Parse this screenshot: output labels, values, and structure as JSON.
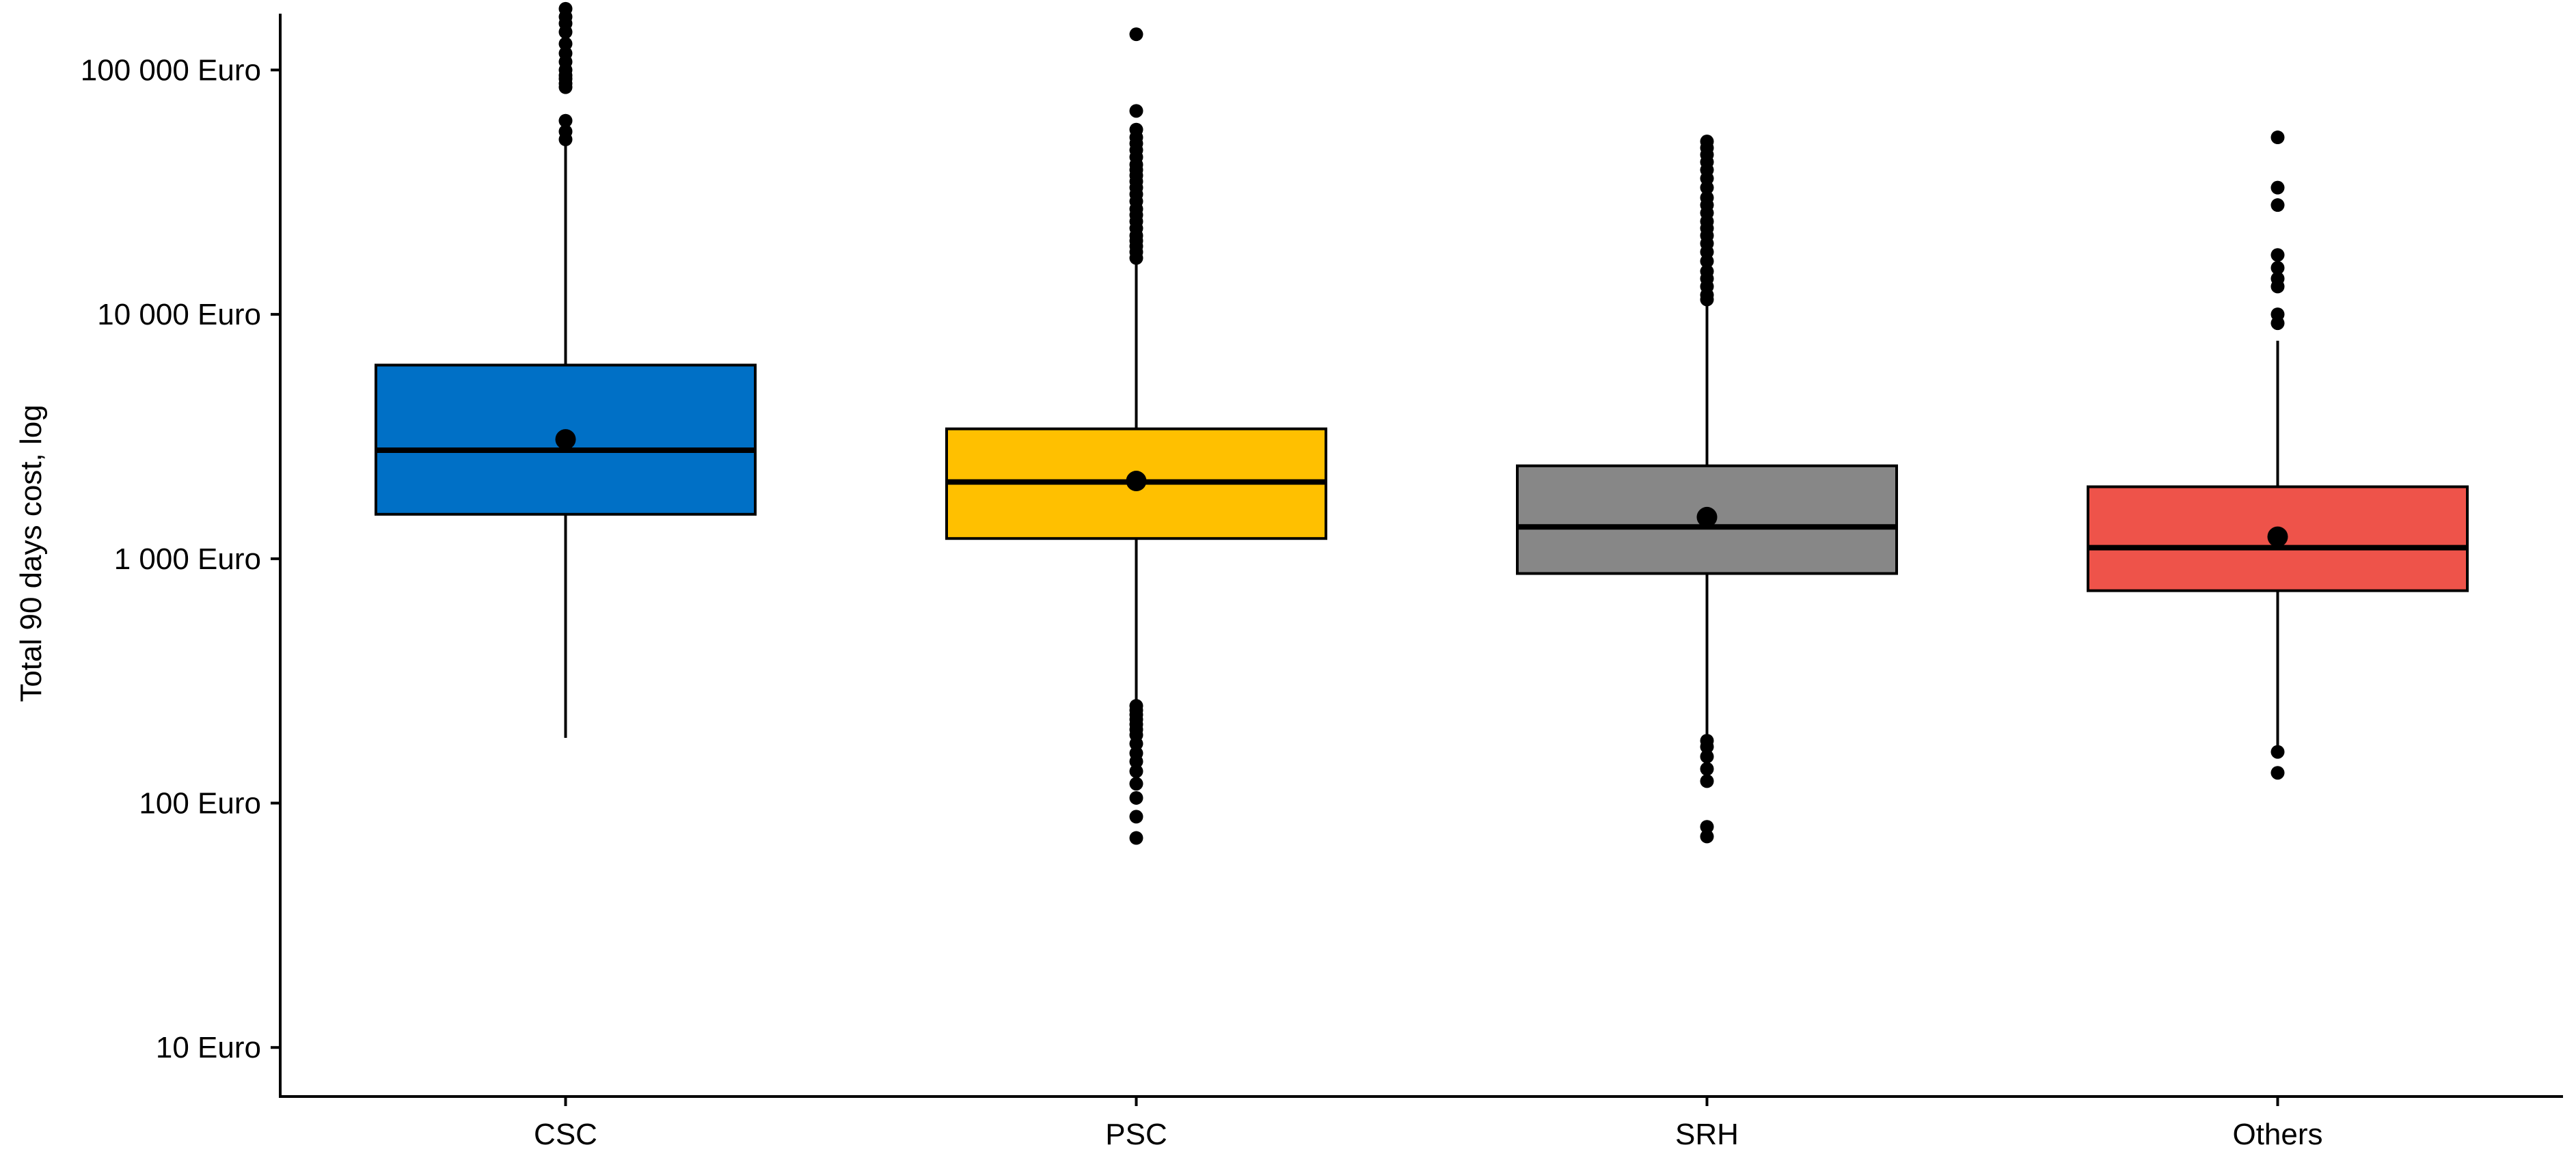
{
  "chart_data": {
    "type": "box",
    "ylabel": "Total 90 days cost, log",
    "xlabel": "",
    "y_scale": "log10",
    "ylim": [
      6.3,
      170000
    ],
    "y_ticks": [
      {
        "value": 10,
        "label": "10 Euro"
      },
      {
        "value": 100,
        "label": "100 Euro"
      },
      {
        "value": 1000,
        "label": "1 000 Euro"
      },
      {
        "value": 10000,
        "label": "10 000 Euro"
      },
      {
        "value": 100000,
        "label": "100 000 Euro"
      }
    ],
    "grid": false,
    "categories": [
      "CSC",
      "PSC",
      "SRH",
      "Others"
    ],
    "boxes": [
      {
        "category": "CSC",
        "color": "#0070C6",
        "whisker_low": 185,
        "q1": 1520,
        "median": 2780,
        "q3": 6200,
        "whisker_high": 50000,
        "mean": 3080,
        "outliers": [
          88000,
          85000,
          62000,
          56000,
          52000,
          178000,
          165000,
          155000,
          143000,
          128000,
          117000,
          108000,
          100000,
          95000,
          92000
        ]
      },
      {
        "category": "PSC",
        "color": "#FFC000",
        "whisker_low": 255,
        "q1": 1210,
        "median": 2060,
        "q3": 3400,
        "whisker_high": 16000,
        "mean": 2080,
        "outliers": [
          140000,
          68000,
          57000,
          53000,
          50000,
          47000,
          44000,
          41000,
          39000,
          37000,
          35000,
          33000,
          31000,
          29000,
          27000,
          25500,
          24000,
          22500,
          21000,
          20000,
          19000,
          18000,
          17000,
          250,
          240,
          230,
          220,
          210,
          200,
          190,
          175,
          160,
          148,
          135,
          120,
          105,
          88,
          72
        ]
      },
      {
        "category": "SRH",
        "color": "#878787",
        "whisker_low": 185,
        "q1": 870,
        "median": 1350,
        "q3": 2400,
        "whisker_high": 11000,
        "mean": 1480,
        "outliers": [
          51000,
          48000,
          45000,
          42000,
          39000,
          36000,
          33000,
          30000,
          28000,
          26000,
          24000,
          22500,
          21000,
          19500,
          18000,
          16500,
          15000,
          14000,
          13000,
          12000,
          11500,
          180,
          170,
          155,
          138,
          123,
          80,
          73
        ]
      },
      {
        "category": "Others",
        "color": "#EE534A",
        "whisker_low": 165,
        "q1": 740,
        "median": 1110,
        "q3": 1970,
        "whisker_high": 7800,
        "mean": 1230,
        "outliers": [
          53000,
          33000,
          28000,
          17500,
          15500,
          14000,
          13000,
          10000,
          9200,
          162,
          133
        ]
      }
    ]
  }
}
